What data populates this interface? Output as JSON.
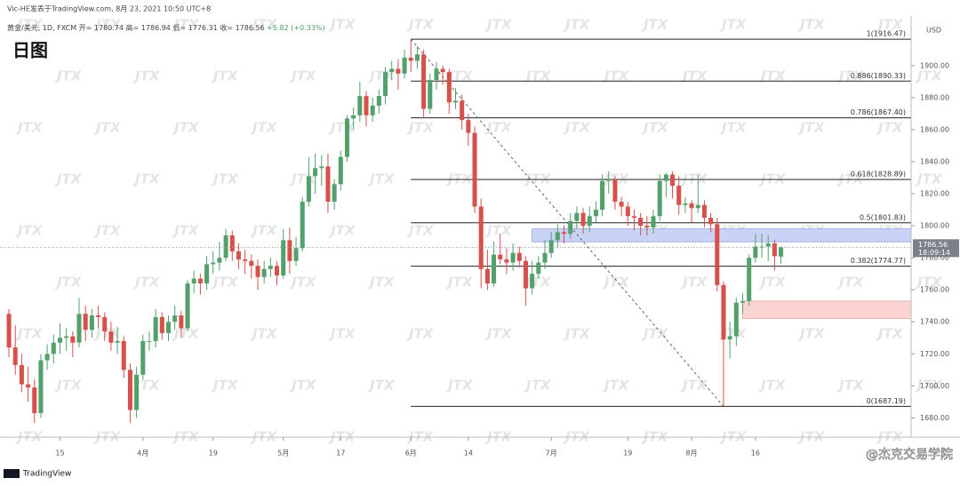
{
  "chart_data": {
    "type": "candlestick",
    "author_line": "Vic-HE发表于TradingView.com, 8月 23, 2021 10:50 UTC+8",
    "symbol": "黄金/美元, 1D, FXCM",
    "legend_labels": [
      "开=",
      "高=",
      "低=",
      "收="
    ],
    "change": "+5.82 (+0.33%)",
    "title": "日图",
    "currency": "USD",
    "countdown": "18:09:14",
    "watermark": "JTX",
    "brand": "TradingView",
    "credit": "@杰克交易学院",
    "up_color": "#53a06d",
    "down_color": "#d6504c",
    "ylim": [
      1668,
      1931
    ],
    "xlim": [
      -1.4,
      141.4
    ],
    "yticks": [
      {
        "value": 1680,
        "label": "1680.00"
      },
      {
        "value": 1700,
        "label": "1700.00"
      },
      {
        "value": 1720,
        "label": "1720.00"
      },
      {
        "value": 1740,
        "label": "1740.00"
      },
      {
        "value": 1760,
        "label": "1760.00"
      },
      {
        "value": 1780,
        "label": "1780.00"
      },
      {
        "value": 1800,
        "label": "1800.00"
      },
      {
        "value": 1820,
        "label": "1820.00"
      },
      {
        "value": 1840,
        "label": "1840.00"
      },
      {
        "value": 1860,
        "label": "1860.00"
      },
      {
        "value": 1880,
        "label": "1880.00"
      },
      {
        "value": 1900,
        "label": "1900.00"
      }
    ],
    "xticks": [
      {
        "value": 8,
        "label": "15"
      },
      {
        "value": 21,
        "label": "4月"
      },
      {
        "value": 32,
        "label": "19"
      },
      {
        "value": 43,
        "label": "5月"
      },
      {
        "value": 52,
        "label": "17"
      },
      {
        "value": 63,
        "label": "6月"
      },
      {
        "value": 72,
        "label": "14"
      },
      {
        "value": 85,
        "label": "7月"
      },
      {
        "value": 97,
        "label": "19"
      },
      {
        "value": 107,
        "label": "8月"
      },
      {
        "value": 117,
        "label": "16"
      }
    ],
    "fib_levels": [
      {
        "label": "1(1916.47)",
        "value": 1916.47
      },
      {
        "label": "0.886(1890.33)",
        "value": 1890.33
      },
      {
        "label": "0.786(1867.40)",
        "value": 1867.4
      },
      {
        "label": "0.618(1828.89)",
        "value": 1828.89
      },
      {
        "label": "0.5(1801.83)",
        "value": 1801.83
      },
      {
        "label": "0.382(1774.77)",
        "value": 1774.77
      },
      {
        "label": "0(1687.19)",
        "value": 1687.19
      }
    ],
    "fib_from": 63,
    "fib_to": 112,
    "zones": [
      {
        "from": 82,
        "low": 1790,
        "high": 1798,
        "color": "#c9d3f5"
      },
      {
        "from": 115,
        "low": 1742,
        "high": 1753,
        "color": "#fbd3d1"
      }
    ],
    "ohlc": [
      [
        1745,
        1748,
        1718,
        1724
      ],
      [
        1724,
        1738,
        1707,
        1713
      ],
      [
        1713,
        1720,
        1696,
        1701
      ],
      [
        1701,
        1712,
        1690,
        1699
      ],
      [
        1699,
        1704,
        1677,
        1683
      ],
      [
        1683,
        1720,
        1680,
        1716
      ],
      [
        1716,
        1726,
        1710,
        1720
      ],
      [
        1720,
        1732,
        1714,
        1727
      ],
      [
        1727,
        1739,
        1720,
        1730
      ],
      [
        1730,
        1736,
        1722,
        1731
      ],
      [
        1731,
        1734,
        1718,
        1727
      ],
      [
        1727,
        1755,
        1724,
        1745
      ],
      [
        1745,
        1750,
        1728,
        1735
      ],
      [
        1735,
        1748,
        1730,
        1744
      ],
      [
        1744,
        1750,
        1736,
        1743
      ],
      [
        1743,
        1746,
        1728,
        1734
      ],
      [
        1734,
        1740,
        1722,
        1727
      ],
      [
        1727,
        1737,
        1720,
        1728
      ],
      [
        1728,
        1731,
        1705,
        1710
      ],
      [
        1710,
        1714,
        1677,
        1685
      ],
      [
        1685,
        1712,
        1680,
        1707
      ],
      [
        1707,
        1732,
        1704,
        1728
      ],
      [
        1728,
        1734,
        1722,
        1728
      ],
      [
        1728,
        1748,
        1724,
        1743
      ],
      [
        1743,
        1746,
        1729,
        1733
      ],
      [
        1733,
        1744,
        1728,
        1740
      ],
      [
        1740,
        1750,
        1735,
        1744
      ],
      [
        1744,
        1747,
        1730,
        1736
      ],
      [
        1736,
        1766,
        1734,
        1764
      ],
      [
        1764,
        1772,
        1758,
        1767
      ],
      [
        1767,
        1770,
        1757,
        1764
      ],
      [
        1764,
        1781,
        1760,
        1776
      ],
      [
        1776,
        1784,
        1770,
        1777
      ],
      [
        1777,
        1790,
        1772,
        1780
      ],
      [
        1780,
        1798,
        1778,
        1794
      ],
      [
        1794,
        1797,
        1778,
        1784
      ],
      [
        1784,
        1789,
        1773,
        1779
      ],
      [
        1779,
        1785,
        1770,
        1778
      ],
      [
        1778,
        1782,
        1767,
        1775
      ],
      [
        1775,
        1779,
        1760,
        1768
      ],
      [
        1768,
        1778,
        1764,
        1773
      ],
      [
        1773,
        1780,
        1768,
        1775
      ],
      [
        1775,
        1778,
        1763,
        1769
      ],
      [
        1769,
        1798,
        1767,
        1791
      ],
      [
        1791,
        1799,
        1770,
        1778
      ],
      [
        1778,
        1793,
        1775,
        1786
      ],
      [
        1786,
        1818,
        1784,
        1815
      ],
      [
        1815,
        1843,
        1812,
        1831
      ],
      [
        1831,
        1845,
        1820,
        1836
      ],
      [
        1836,
        1844,
        1825,
        1837
      ],
      [
        1837,
        1845,
        1808,
        1815
      ],
      [
        1815,
        1829,
        1810,
        1826
      ],
      [
        1826,
        1847,
        1822,
        1843
      ],
      [
        1843,
        1869,
        1840,
        1867
      ],
      [
        1867,
        1874,
        1860,
        1869
      ],
      [
        1869,
        1890,
        1865,
        1881
      ],
      [
        1881,
        1884,
        1862,
        1869
      ],
      [
        1869,
        1880,
        1865,
        1875
      ],
      [
        1875,
        1885,
        1870,
        1881
      ],
      [
        1881,
        1899,
        1876,
        1896
      ],
      [
        1896,
        1903,
        1891,
        1898
      ],
      [
        1898,
        1904,
        1885,
        1895
      ],
      [
        1895,
        1910,
        1892,
        1905
      ],
      [
        1905,
        1916.47,
        1896,
        1903
      ],
      [
        1903,
        1912,
        1898,
        1907
      ],
      [
        1907,
        1910,
        1868,
        1873
      ],
      [
        1873,
        1895,
        1870,
        1891
      ],
      [
        1891,
        1902,
        1885,
        1898
      ],
      [
        1898,
        1900,
        1888,
        1896
      ],
      [
        1896,
        1898,
        1870,
        1877
      ],
      [
        1877,
        1886,
        1873,
        1878
      ],
      [
        1878,
        1882,
        1860,
        1866
      ],
      [
        1866,
        1870,
        1850,
        1858
      ],
      [
        1858,
        1862,
        1808,
        1812
      ],
      [
        1812,
        1817,
        1761,
        1773
      ],
      [
        1773,
        1785,
        1760,
        1764
      ],
      [
        1764,
        1790,
        1762,
        1782
      ],
      [
        1782,
        1795,
        1776,
        1779
      ],
      [
        1779,
        1786,
        1770,
        1777
      ],
      [
        1777,
        1789,
        1772,
        1783
      ],
      [
        1783,
        1787,
        1774,
        1778
      ],
      [
        1778,
        1781,
        1750,
        1761
      ],
      [
        1761,
        1778,
        1757,
        1770
      ],
      [
        1770,
        1781,
        1767,
        1777
      ],
      [
        1777,
        1791,
        1773,
        1783
      ],
      [
        1783,
        1796,
        1780,
        1791
      ],
      [
        1791,
        1801,
        1786,
        1796
      ],
      [
        1796,
        1800,
        1789,
        1795
      ],
      [
        1795,
        1808,
        1792,
        1803
      ],
      [
        1803,
        1812,
        1798,
        1808
      ],
      [
        1808,
        1811,
        1795,
        1800
      ],
      [
        1800,
        1812,
        1796,
        1806
      ],
      [
        1806,
        1815,
        1802,
        1810
      ],
      [
        1810,
        1832,
        1806,
        1828
      ],
      [
        1828,
        1834,
        1820,
        1829
      ],
      [
        1829,
        1831,
        1810,
        1815
      ],
      [
        1815,
        1818,
        1806,
        1812
      ],
      [
        1812,
        1815,
        1800,
        1806
      ],
      [
        1806,
        1810,
        1797,
        1805
      ],
      [
        1805,
        1808,
        1794,
        1800
      ],
      [
        1800,
        1806,
        1794,
        1799
      ],
      [
        1799,
        1810,
        1795,
        1806
      ],
      [
        1806,
        1832,
        1803,
        1828
      ],
      [
        1828,
        1833,
        1818,
        1832
      ],
      [
        1832,
        1834,
        1817,
        1825
      ],
      [
        1825,
        1831,
        1807,
        1813
      ],
      [
        1813,
        1818,
        1808,
        1814
      ],
      [
        1814,
        1816,
        1802,
        1811
      ],
      [
        1811,
        1832,
        1808,
        1813
      ],
      [
        1813,
        1816,
        1799,
        1805
      ],
      [
        1805,
        1808,
        1796,
        1801
      ],
      [
        1801,
        1805,
        1759,
        1763
      ],
      [
        1763,
        1765,
        1687.19,
        1729
      ],
      [
        1729,
        1740,
        1717,
        1731
      ],
      [
        1731,
        1755,
        1725,
        1752
      ],
      [
        1752,
        1758,
        1745,
        1753
      ],
      [
        1753,
        1782,
        1750,
        1780
      ],
      [
        1780,
        1795,
        1777,
        1787
      ],
      [
        1787,
        1795,
        1780,
        1787
      ],
      [
        1787,
        1794,
        1778,
        1789
      ],
      [
        1789,
        1791,
        1772,
        1781
      ],
      [
        1780.74,
        1786.94,
        1776.31,
        1786.56
      ]
    ]
  }
}
